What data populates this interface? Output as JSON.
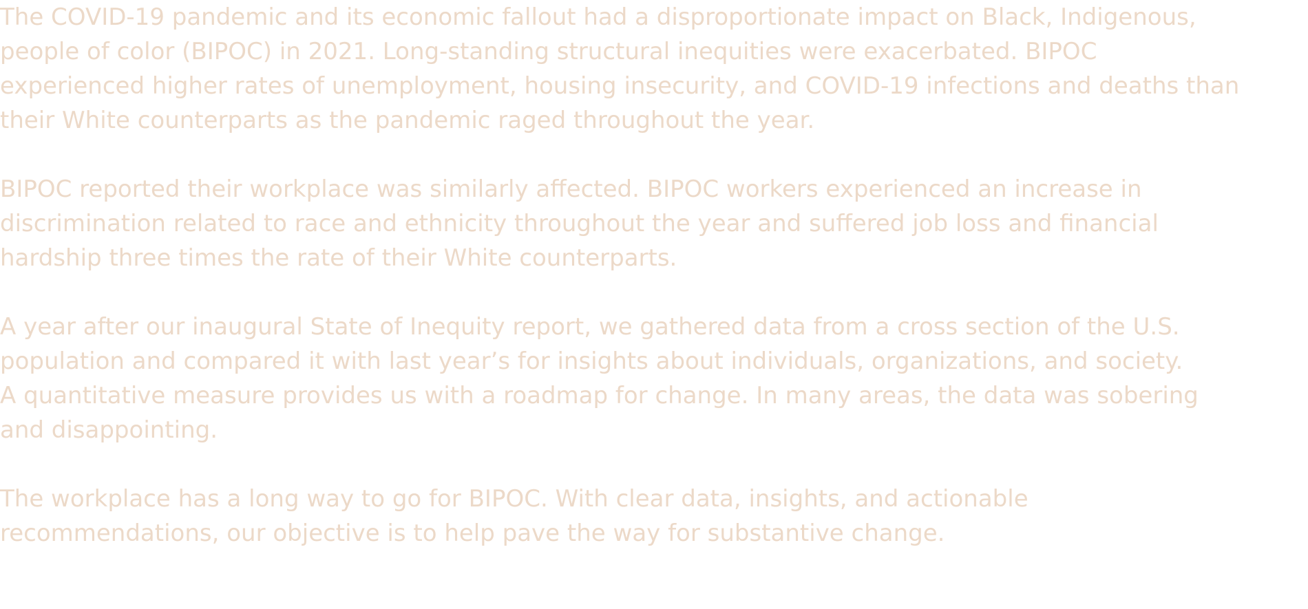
{
  "theme": {
    "text_color": "#ecd9c8",
    "background": "#ffffff"
  },
  "paragraphs": [
    {
      "lines": [
        "The COVID-19 pandemic and its economic fallout had a disproportionate impact on Black, Indigenous,",
        "people of color (BIPOC) in 2021. Long-standing structural inequities were exacerbated. BIPOC",
        "experienced higher rates of unemployment, housing insecurity, and COVID-19 infections and deaths than",
        "their White counterparts as the pandemic raged throughout the year."
      ]
    },
    {
      "lines": [
        "BIPOC reported their workplace was similarly affected. BIPOC workers experienced an increase in",
        "discrimination related to race and ethnicity throughout the year and suffered job loss and financial",
        "hardship three times the rate of their White counterparts."
      ]
    },
    {
      "lines": [
        "A year after our inaugural State of Inequity report, we gathered data from a cross section of the U.S.",
        "population and compared it with last year’s for insights about individuals, organizations, and society.",
        "A quantitative measure provides us with a roadmap for change. In many areas, the data was sobering",
        "and disappointing."
      ]
    },
    {
      "lines": [
        "The workplace has a long way to go for BIPOC. With clear data, insights, and actionable",
        "recommendations, our objective is to help pave the way for substantive change."
      ]
    }
  ]
}
